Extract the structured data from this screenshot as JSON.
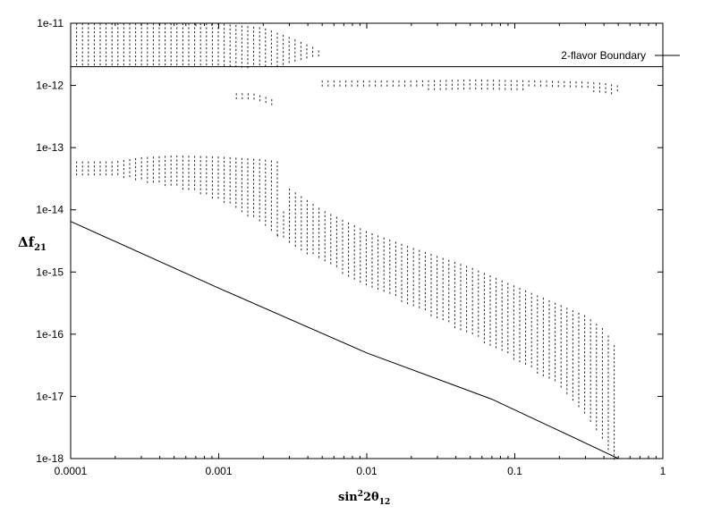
{
  "chart_data": {
    "type": "scatter",
    "xlabel": {
      "main": "sin",
      "sup": "2",
      "rest": "2θ",
      "sub": "12"
    },
    "ylabel": {
      "main": "Δf",
      "sub": "21"
    },
    "xscale": "log",
    "yscale": "log",
    "xlim": [
      0.0001,
      1
    ],
    "ylim": [
      1e-18,
      1e-11
    ],
    "xticks": [
      {
        "value": 0.0001,
        "label": "0.0001"
      },
      {
        "value": 0.001,
        "label": "0.001"
      },
      {
        "value": 0.01,
        "label": "0.01"
      },
      {
        "value": 0.1,
        "label": "0.1"
      },
      {
        "value": 1,
        "label": "1"
      }
    ],
    "yticks": [
      {
        "value": 1e-18,
        "label": "1e-18"
      },
      {
        "value": 1e-17,
        "label": "1e-17"
      },
      {
        "value": 1e-16,
        "label": "1e-16"
      },
      {
        "value": 1e-15,
        "label": "1e-15"
      },
      {
        "value": 1e-14,
        "label": "1e-14"
      },
      {
        "value": 1e-13,
        "label": "1e-13"
      },
      {
        "value": 1e-12,
        "label": "1e-12"
      },
      {
        "value": 1e-11,
        "label": "1e-11"
      }
    ],
    "grid": false,
    "legend": {
      "position": "top-right",
      "entries": [
        "2-flavor Boundary"
      ]
    },
    "series": [
      {
        "name": "2-flavor Boundary",
        "kind": "line",
        "points": [
          [
            0.0001,
            2e-12
          ],
          [
            1,
            2e-12
          ]
        ]
      },
      {
        "kind": "line",
        "points": [
          [
            0.0001,
            6.5e-15
          ],
          [
            0.001,
            5.5e-16
          ],
          [
            0.01,
            5e-17
          ],
          [
            0.07,
            9e-18
          ],
          [
            0.2,
            2.8e-18
          ],
          [
            0.5,
            1e-18
          ]
        ]
      },
      {
        "kind": "dots",
        "regions": [
          {
            "points": [
              [
                0.0001,
                1e-11,
                2e-12
              ],
              [
                0.0005,
                1e-11,
                2e-12
              ],
              [
                0.001,
                1e-11,
                2e-12
              ],
              [
                0.002,
                8.5e-12,
                2e-12
              ],
              [
                0.003,
                6e-12,
                2.2e-12
              ],
              [
                0.0045,
                4e-12,
                2.8e-12
              ],
              [
                0.005,
                3.3e-12,
                3e-12
              ]
            ]
          },
          {
            "points": [
              [
                0.0012,
                7.5e-13,
                6.5e-13
              ],
              [
                0.0017,
                7.5e-13,
                6e-13
              ],
              [
                0.0021,
                6.5e-13,
                5e-13
              ],
              [
                0.0025,
                5.5e-13,
                5e-13
              ]
            ]
          },
          {
            "points": [
              [
                0.005,
                1.2e-12,
                9e-13
              ],
              [
                0.02,
                1.2e-12,
                9e-13
              ],
              [
                0.05,
                1.25e-12,
                9e-13
              ],
              [
                0.15,
                1.2e-12,
                9e-13
              ],
              [
                0.3,
                1.15e-12,
                9e-13
              ],
              [
                0.4,
                1.1e-12,
                7e-13
              ],
              [
                0.5,
                1e-12,
                8e-13
              ]
            ]
          },
          {
            "points": [
              [
                0.0001,
                6e-14,
                3.5e-14
              ],
              [
                0.0002,
                6e-14,
                3.5e-14
              ],
              [
                0.0003,
                7e-14,
                3e-14
              ],
              [
                0.0005,
                7.5e-14,
                2.4e-14
              ],
              [
                0.001,
                7.2e-14,
                1.5e-14
              ],
              [
                0.002,
                6.5e-14,
                6e-15
              ],
              [
                0.0025,
                6e-14,
                4e-15
              ]
            ]
          },
          {
            "points": [
              [
                0.0025,
                4e-15,
                4e-15
              ],
              [
                0.003,
                2.2e-14,
                3e-15
              ],
              [
                0.005,
                1e-14,
                1.5e-15
              ],
              [
                0.01,
                4.5e-15,
                6e-16
              ],
              [
                0.02,
                2.5e-15,
                3e-16
              ],
              [
                0.05,
                1.2e-15,
                1e-16
              ],
              [
                0.1,
                6e-16,
                4e-17
              ],
              [
                0.2,
                3e-16,
                1.5e-17
              ],
              [
                0.3,
                2e-16,
                5e-18
              ],
              [
                0.4,
                1.2e-16,
                2e-18
              ],
              [
                0.45,
                8e-17,
                1e-18
              ],
              [
                0.5,
                5e-17,
                1e-18
              ]
            ]
          }
        ]
      }
    ]
  }
}
